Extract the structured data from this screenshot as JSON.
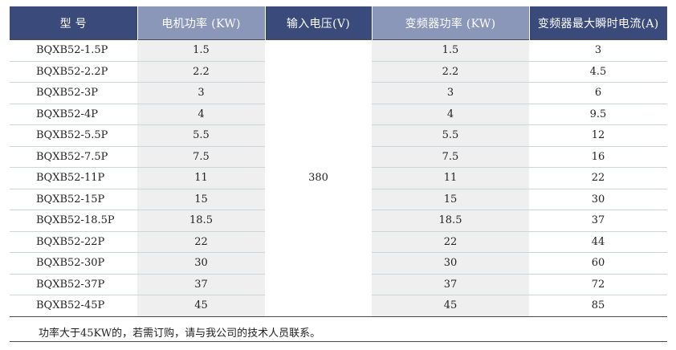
{
  "headers": {
    "model": "型  号",
    "motor_power": "电机功率 (KW)",
    "input_voltage": "输入电压(V)",
    "vfd_power": "变频器功率 (KW)",
    "max_current": "变频器最大瞬时电流(A)"
  },
  "voltage": "380",
  "rows": [
    {
      "model": "BQXB52-1.5P",
      "motor": "1.5",
      "vfd": "1.5",
      "current": "3"
    },
    {
      "model": "BQXB52-2.2P",
      "motor": "2.2",
      "vfd": "2.2",
      "current": "4.5"
    },
    {
      "model": "BQXB52-3P",
      "motor": "3",
      "vfd": "3",
      "current": "6"
    },
    {
      "model": "BQXB52-4P",
      "motor": "4",
      "vfd": "4",
      "current": "9.5"
    },
    {
      "model": "BQXB52-5.5P",
      "motor": "5.5",
      "vfd": "5.5",
      "current": "12"
    },
    {
      "model": "BQXB52-7.5P",
      "motor": "7.5",
      "vfd": "7.5",
      "current": "16"
    },
    {
      "model": "BQXB52-11P",
      "motor": "11",
      "vfd": "11",
      "current": "22"
    },
    {
      "model": "BQXB52-15P",
      "motor": "15",
      "vfd": "15",
      "current": "30"
    },
    {
      "model": "BQXB52-18.5P",
      "motor": "18.5",
      "vfd": "18.5",
      "current": "37"
    },
    {
      "model": "BQXB52-22P",
      "motor": "22",
      "vfd": "22",
      "current": "44"
    },
    {
      "model": "BQXB52-30P",
      "motor": "30",
      "vfd": "30",
      "current": "60"
    },
    {
      "model": "BQXB52-37P",
      "motor": "37",
      "vfd": "37",
      "current": "72"
    },
    {
      "model": "BQXB52-45P",
      "motor": "45",
      "vfd": "45",
      "current": "85"
    }
  ],
  "footnote": "功率大于45KW的，若需订购，请与我公司的技术人员联系。",
  "colors": {
    "header_dark": "#3a4a7a",
    "header_light": "#8a97b8",
    "shaded_column": "#efefef"
  }
}
